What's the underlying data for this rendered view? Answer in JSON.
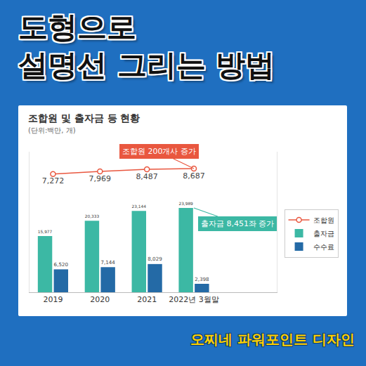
{
  "header": {
    "title": [
      "도형으로",
      "설명선 그리는 방법"
    ]
  },
  "footer": "오찌네 파워포인트 디자인",
  "chart_data": {
    "type": "bar",
    "title": "조합원 및 출자금 등 현황",
    "subtitle": "(단위:백만, 개)",
    "categories": [
      "2019",
      "2020",
      "2021",
      "2022년 3월말"
    ],
    "series": [
      {
        "name": "조합원",
        "type": "line",
        "axis": "y2",
        "color": "#e9573f",
        "marker": "circle",
        "values": [
          7272,
          7969,
          8487,
          8687
        ],
        "value_labels": [
          "7,272",
          "7,969",
          "8,487",
          "8,687"
        ]
      },
      {
        "name": "출자금",
        "type": "bar",
        "color": "#3cb8a4",
        "values": [
          15977,
          20333,
          23144,
          23989
        ],
        "value_labels": [
          "15,977",
          "20,333",
          "23,144",
          "23,989"
        ]
      },
      {
        "name": "수수료",
        "type": "bar",
        "color": "#246aa6",
        "values": [
          6520,
          7144,
          8029,
          2398
        ],
        "value_labels": [
          "6,520",
          "7,144",
          "8,029",
          "2,398"
        ]
      }
    ],
    "ylim": [
      0,
      40000
    ],
    "y2lim": [
      -23000,
      13000
    ],
    "tick_labels": "x",
    "grid": false,
    "legend": "right",
    "data_labels": true,
    "annotations": [
      {
        "text": "조합원 200개사 증가",
        "series": "조합원",
        "category": "2022년 3월말",
        "color": "#e9573f"
      },
      {
        "text": "출자금 8,451좌 증가",
        "series": "출자금",
        "category": "2022년 3월말",
        "color": "#3cb8a4"
      }
    ]
  }
}
